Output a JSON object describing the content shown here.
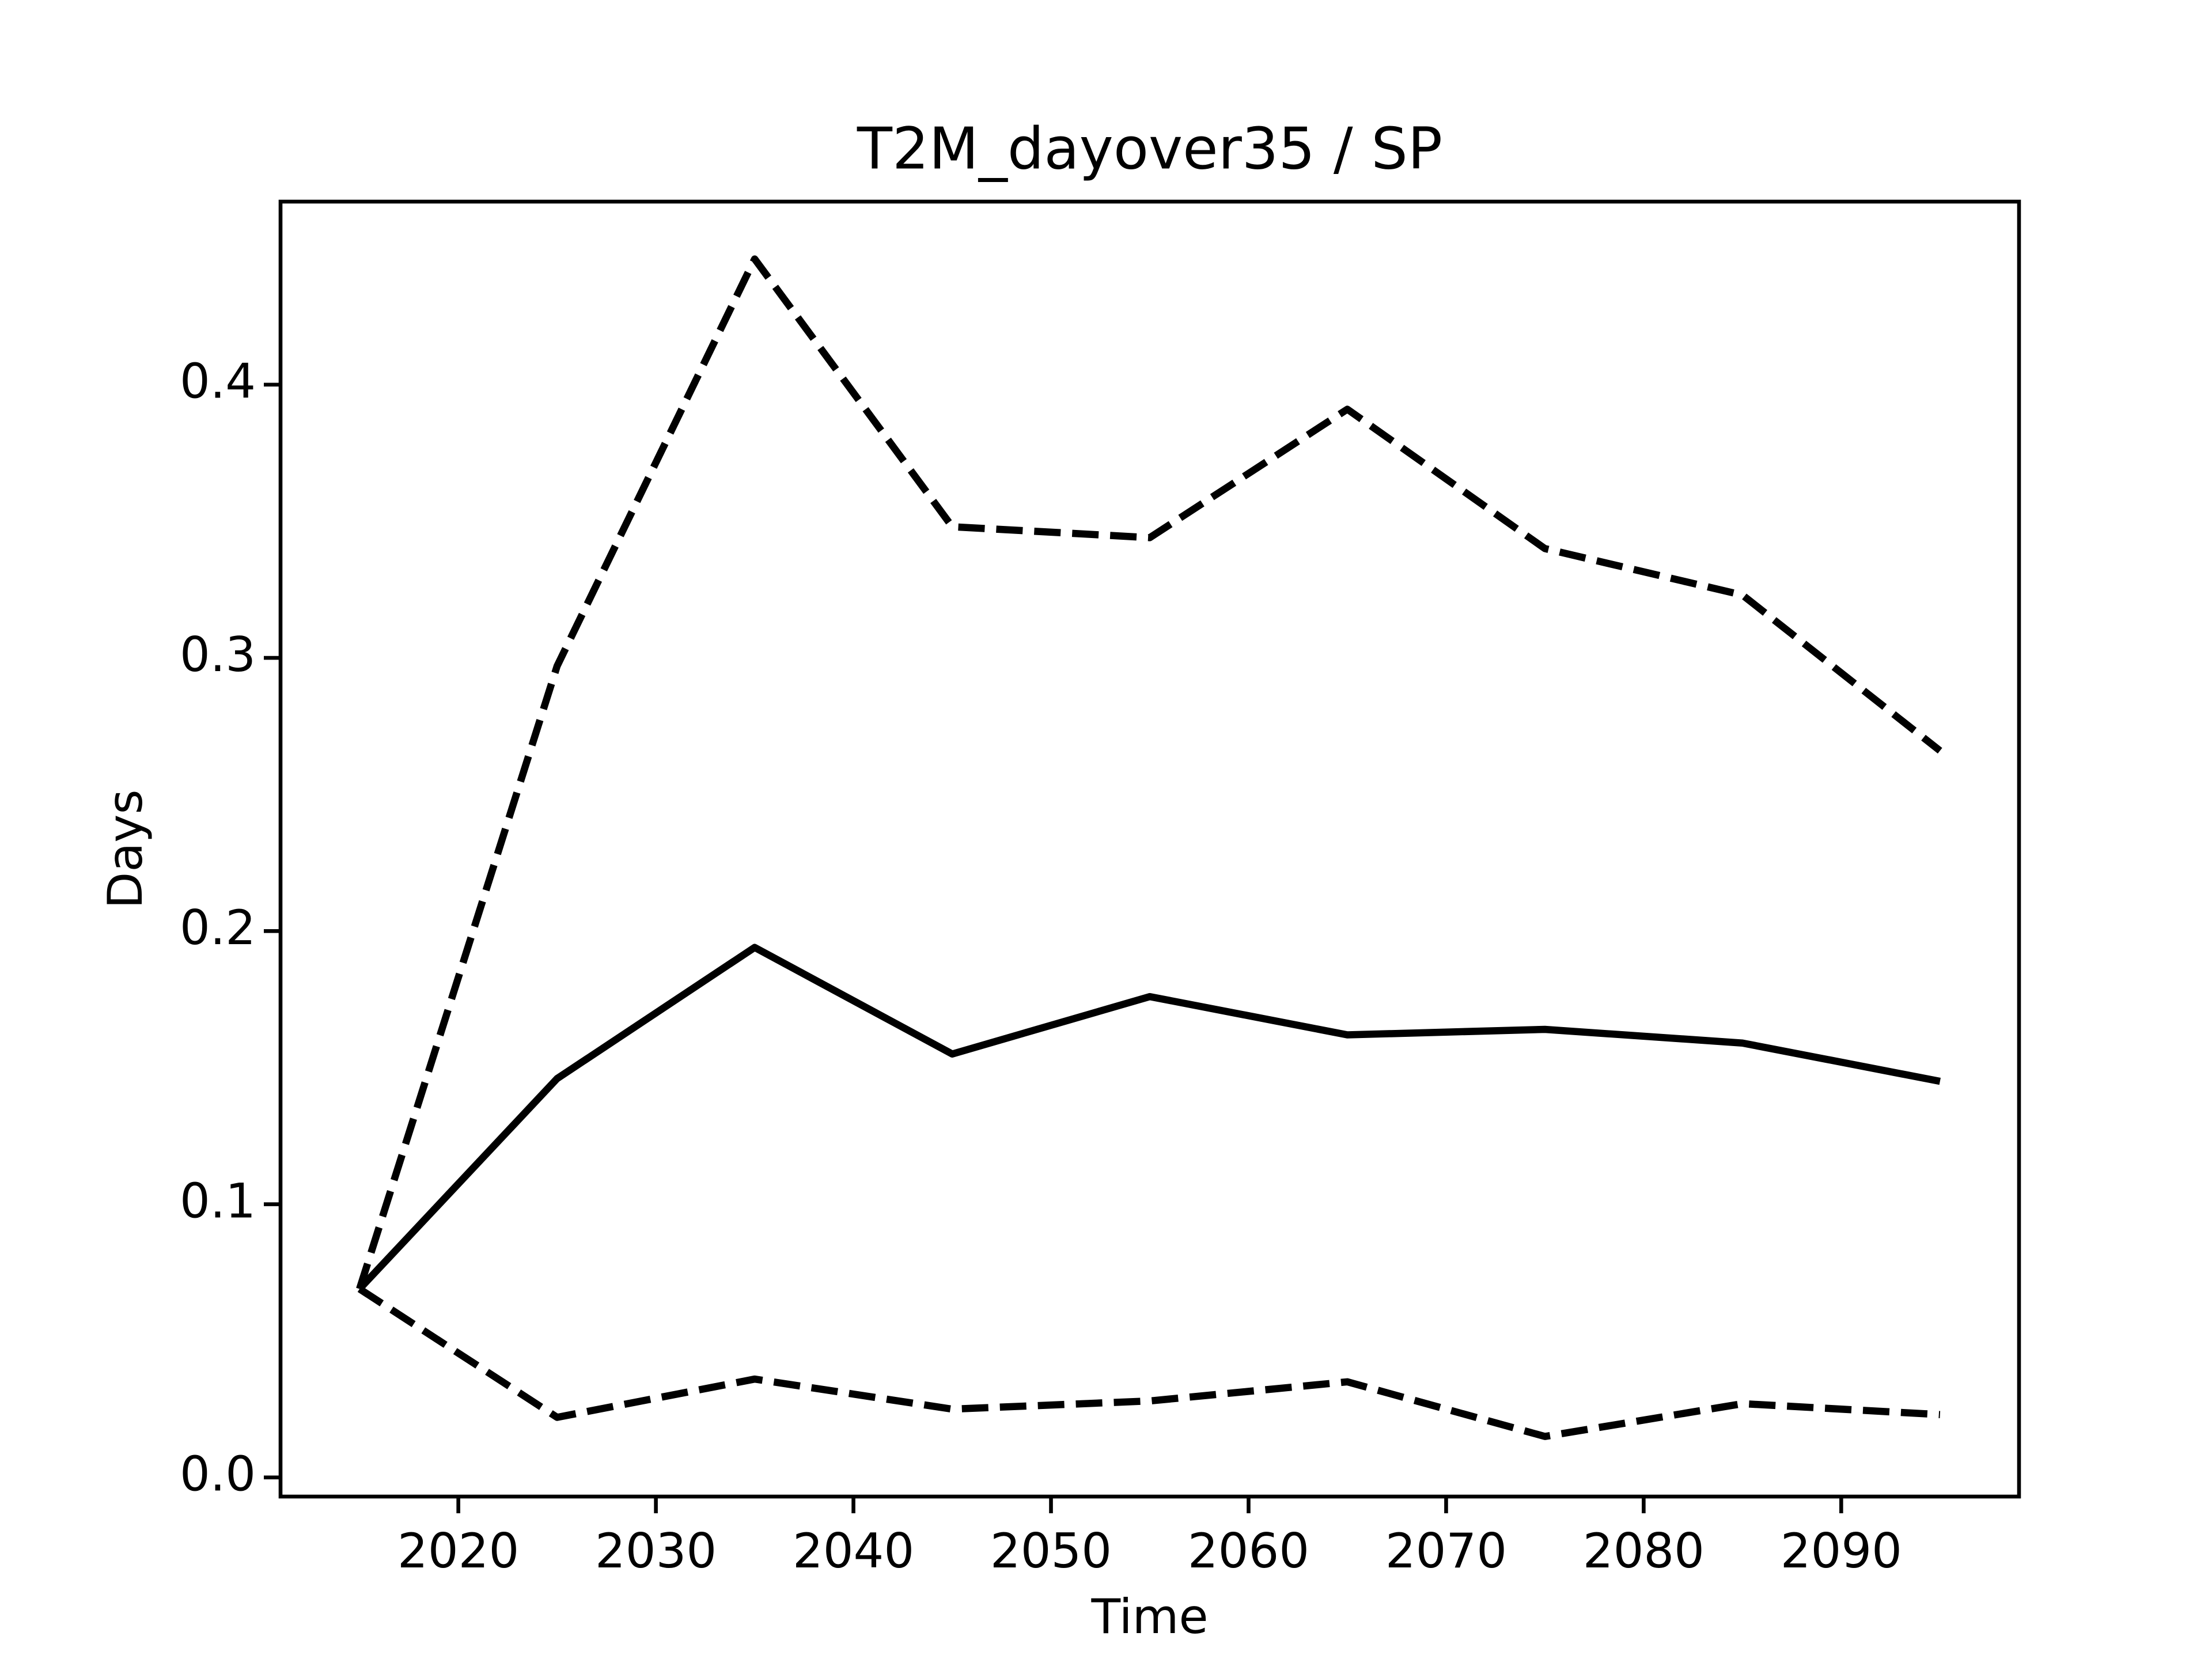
{
  "chart_data": {
    "type": "line",
    "title": "T2M_dayover35 / SP",
    "x_label": "Time",
    "y_label": "Days",
    "x": [
      2015,
      2025,
      2035,
      2045,
      2055,
      2065,
      2075,
      2085,
      2095
    ],
    "series": [
      {
        "color": "#000000",
        "style": "solid",
        "values": [
          0.069,
          0.146,
          0.194,
          0.155,
          0.176,
          0.162,
          0.164,
          0.159,
          0.145
        ]
      },
      {
        "color": "#000000",
        "style": "dashed",
        "values": [
          0.069,
          0.297,
          0.446,
          0.348,
          0.344,
          0.391,
          0.34,
          0.323,
          0.266
        ]
      },
      {
        "color": "#000000",
        "style": "dashed",
        "values": [
          0.069,
          0.022,
          0.036,
          0.025,
          0.028,
          0.035,
          0.015,
          0.027,
          0.023
        ]
      }
    ],
    "xlim": [
      2011,
      2099
    ],
    "xticks": [
      2020,
      2030,
      2040,
      2050,
      2060,
      2070,
      2080,
      2090
    ],
    "ylim": [
      -0.007,
      0.467
    ],
    "yticks": [
      {
        "value": 0,
        "label": "0.0"
      },
      0.1,
      0.2,
      0.3,
      0.4
    ],
    "grid": false
  }
}
